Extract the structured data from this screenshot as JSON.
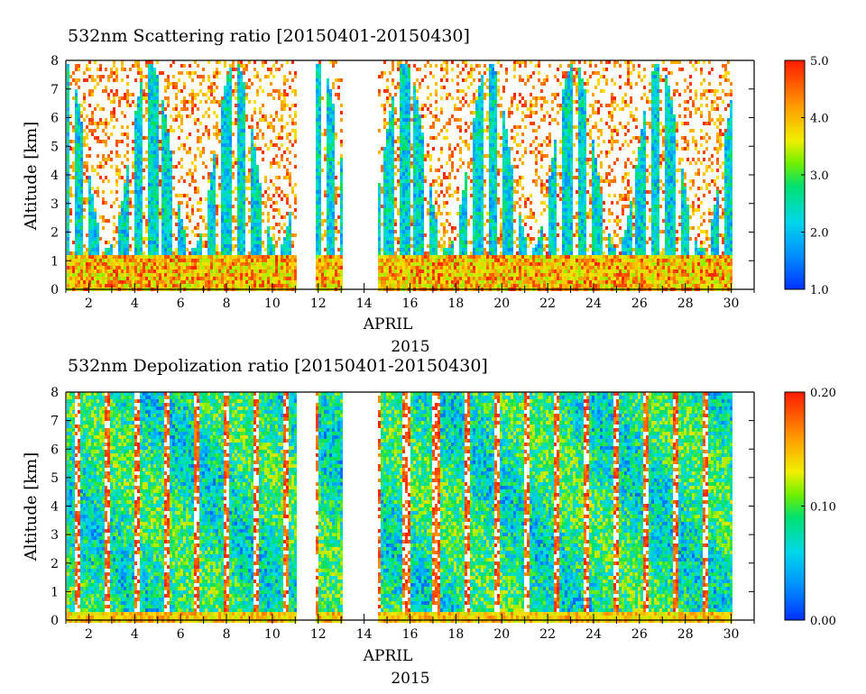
{
  "chart_data": [
    {
      "type": "heatmap",
      "title": "532nm Scattering ratio [20150401-20150430]",
      "ylabel": "Altitude [km]",
      "xlabel_month": "APRIL",
      "xlabel_year": "2015",
      "x_tick_labels": [
        "2",
        "4",
        "6",
        "8",
        "10",
        "12",
        "14",
        "16",
        "18",
        "20",
        "22",
        "24",
        "26",
        "28",
        "30"
      ],
      "y_tick_labels": [
        "0",
        "1",
        "2",
        "3",
        "4",
        "5",
        "6",
        "7",
        "8"
      ],
      "xlim": [
        1,
        31
      ],
      "ylim": [
        0,
        8
      ],
      "colorbar": {
        "min": 1.0,
        "max": 5.0,
        "tick_labels": [
          "1.0",
          "2.0",
          "3.0",
          "4.0",
          "5.0"
        ]
      },
      "colormap": [
        "#0040ff",
        "#00a0ff",
        "#00e0e0",
        "#00e060",
        "#a0f000",
        "#ffe000",
        "#ff9000",
        "#ff2000"
      ],
      "no_data_days": [
        [
          11.0,
          11.8
        ],
        [
          13.0,
          14.5
        ],
        [
          30.0,
          31.0
        ]
      ]
    },
    {
      "type": "heatmap",
      "title": "532nm Depolization ratio [20150401-20150430]",
      "ylabel": "Altitude [km]",
      "xlabel_month": "APRIL",
      "xlabel_year": "2015",
      "x_tick_labels": [
        "2",
        "4",
        "6",
        "8",
        "10",
        "12",
        "14",
        "16",
        "18",
        "20",
        "22",
        "24",
        "26",
        "28",
        "30"
      ],
      "y_tick_labels": [
        "0",
        "1",
        "2",
        "3",
        "4",
        "5",
        "6",
        "7",
        "8"
      ],
      "xlim": [
        1,
        31
      ],
      "ylim": [
        0,
        8
      ],
      "colorbar": {
        "min": 0.0,
        "max": 0.2,
        "tick_labels": [
          "0.00",
          "0.10",
          "0.20"
        ]
      },
      "colormap": [
        "#0040ff",
        "#00a0ff",
        "#00e0e0",
        "#00e060",
        "#a0f000",
        "#ffe000",
        "#ff9000",
        "#ff2000"
      ],
      "no_data_days": [
        [
          11.0,
          11.8
        ],
        [
          13.0,
          14.5
        ],
        [
          30.0,
          31.0
        ]
      ]
    }
  ]
}
